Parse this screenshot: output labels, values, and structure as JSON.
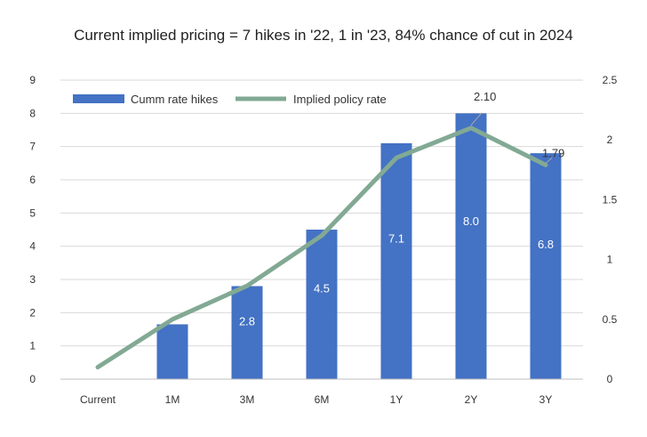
{
  "chart_data": {
    "type": "bar",
    "title": "Current implied pricing = 7 hikes in '22, 1 in '23, 84% chance of cut in 2024",
    "categories": [
      "Current",
      "1M",
      "3M",
      "6M",
      "1Y",
      "2Y",
      "3Y"
    ],
    "series": [
      {
        "name": "Cumm rate hikes",
        "type": "bar",
        "axis": "left",
        "color": "#4472C4",
        "values": [
          0,
          1.65,
          2.8,
          4.5,
          7.1,
          8.0,
          6.8
        ],
        "labels": [
          "",
          "",
          "2.8",
          "4.5",
          "7.1",
          "8.0",
          "6.8"
        ]
      },
      {
        "name": "Implied policy rate",
        "type": "line",
        "axis": "right",
        "color": "#82A994",
        "values": [
          0.1,
          0.5,
          0.78,
          1.2,
          1.85,
          2.1,
          1.79
        ],
        "labels": [
          "",
          "",
          "",
          "",
          "",
          "2.10",
          "1.79"
        ]
      }
    ],
    "y_left": {
      "ylim": [
        0,
        9
      ],
      "ticks": [
        "0",
        "1",
        "2",
        "3",
        "4",
        "5",
        "6",
        "7",
        "8",
        "9"
      ]
    },
    "y_right": {
      "ylim": [
        0,
        2.5
      ],
      "ticks": [
        "0",
        "0.5",
        "1",
        "1.5",
        "2",
        "2.5"
      ]
    },
    "grid": true,
    "legend_position": "top-left"
  }
}
